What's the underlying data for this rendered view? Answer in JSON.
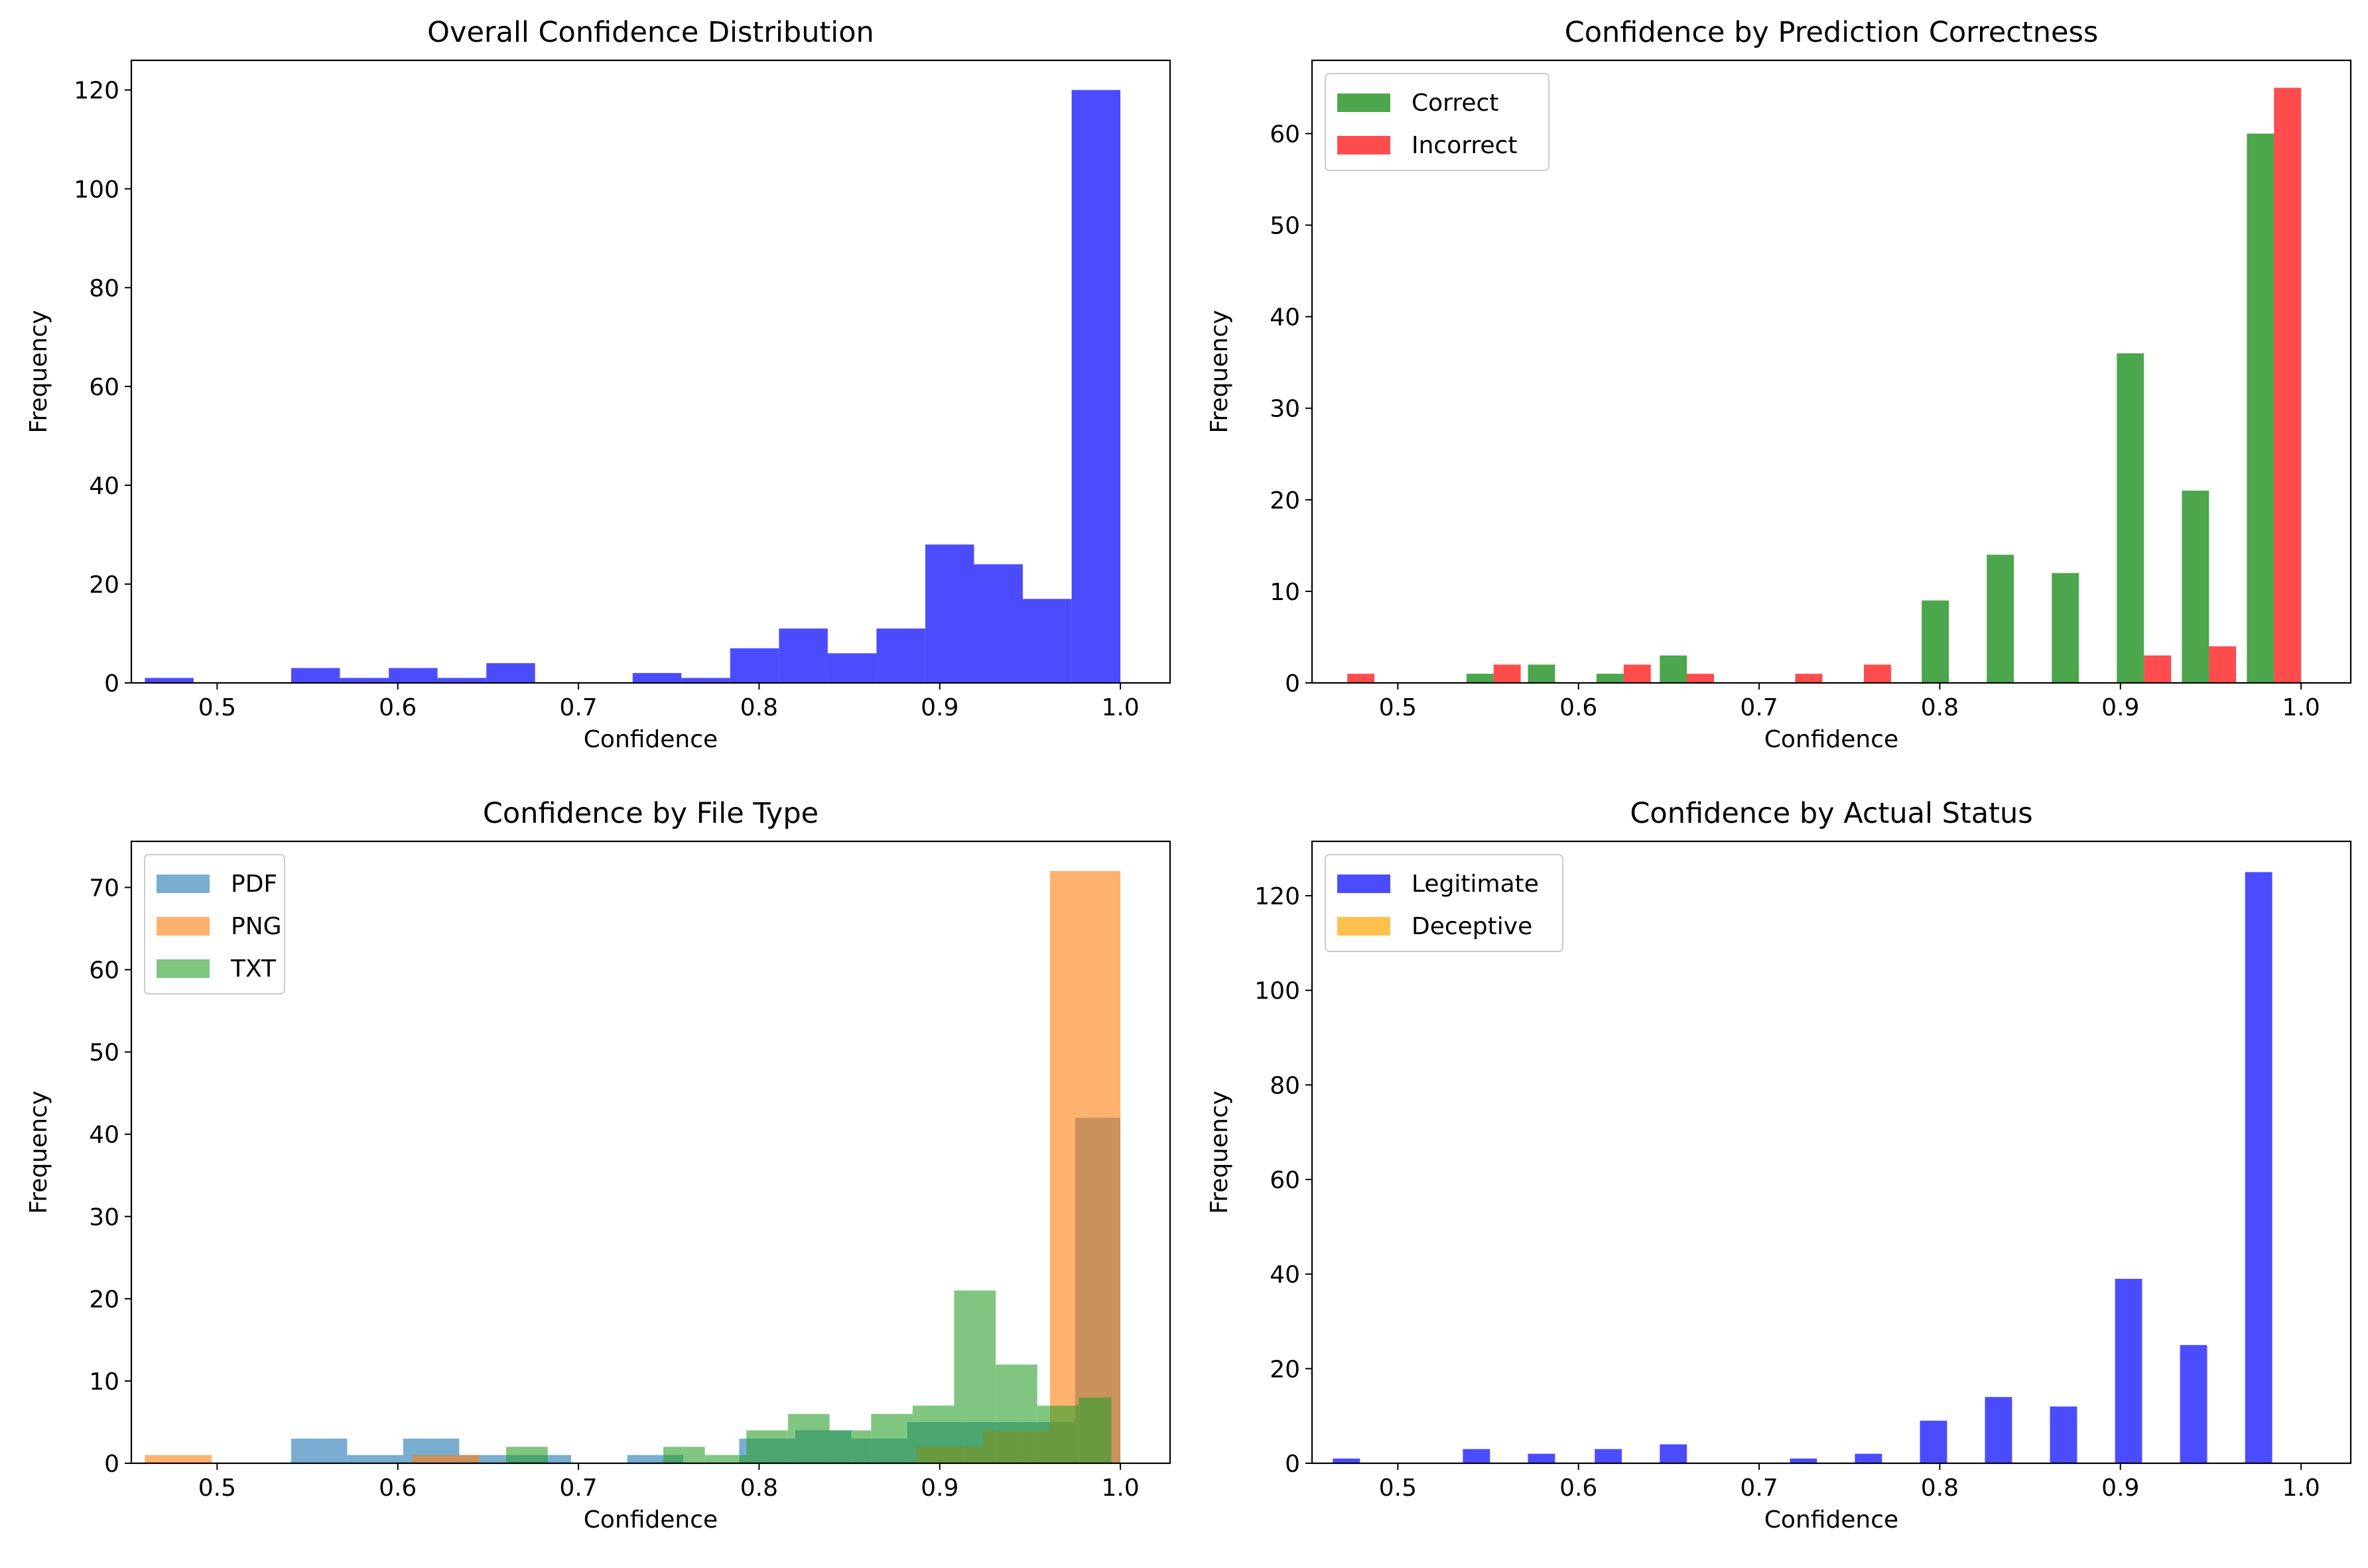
{
  "chart_data": [
    {
      "type": "bar",
      "title": "Overall Confidence Distribution",
      "xlabel": "Confidence",
      "ylabel": "Frequency",
      "xlim": [
        0.4525,
        1.0275
      ],
      "ylim": [
        0,
        126
      ],
      "xticks": [
        0.5,
        0.6,
        0.7,
        0.8,
        0.9,
        1.0
      ],
      "xtick_labels": [
        "0.5",
        "0.6",
        "0.7",
        "0.8",
        "0.9",
        "1.0"
      ],
      "yticks": [
        0,
        20,
        40,
        60,
        80,
        100,
        120
      ],
      "ytick_labels": [
        "0",
        "20",
        "40",
        "60",
        "80",
        "100",
        "120"
      ],
      "legend": null,
      "series": [
        {
          "color": "#0000ff",
          "opacity": 0.7,
          "bins": [
            [
              0.46,
              0.487,
              1
            ],
            [
              0.487,
              0.514,
              0
            ],
            [
              0.514,
              0.541,
              0
            ],
            [
              0.541,
              0.568,
              3
            ],
            [
              0.568,
              0.595,
              1
            ],
            [
              0.595,
              0.622,
              3
            ],
            [
              0.622,
              0.649,
              1
            ],
            [
              0.649,
              0.676,
              4
            ],
            [
              0.676,
              0.703,
              0
            ],
            [
              0.703,
              0.73,
              0
            ],
            [
              0.73,
              0.757,
              2
            ],
            [
              0.757,
              0.784,
              1
            ],
            [
              0.784,
              0.811,
              7
            ],
            [
              0.811,
              0.838,
              11
            ],
            [
              0.838,
              0.865,
              6
            ],
            [
              0.865,
              0.892,
              11
            ],
            [
              0.892,
              0.919,
              28
            ],
            [
              0.919,
              0.946,
              24
            ],
            [
              0.946,
              0.973,
              17
            ],
            [
              0.973,
              1.0,
              120
            ]
          ]
        }
      ]
    },
    {
      "type": "bar",
      "title": "Confidence by Prediction Correctness",
      "xlabel": "Confidence",
      "ylabel": "Frequency",
      "xlim": [
        0.4525,
        1.0275
      ],
      "ylim": [
        0,
        68
      ],
      "xticks": [
        0.5,
        0.6,
        0.7,
        0.8,
        0.9,
        1.0
      ],
      "xtick_labels": [
        "0.5",
        "0.6",
        "0.7",
        "0.8",
        "0.9",
        "1.0"
      ],
      "yticks": [
        0,
        10,
        20,
        30,
        40,
        50,
        60
      ],
      "ytick_labels": [
        "0",
        "10",
        "20",
        "30",
        "40",
        "50",
        "60"
      ],
      "legend": "top-left",
      "series": [
        {
          "name": "Correct",
          "color": "#008000",
          "opacity": 0.7,
          "bins": [
            [
              0.538,
              0.553,
              1
            ],
            [
              0.572,
              0.587,
              2
            ],
            [
              0.61,
              0.625,
              1
            ],
            [
              0.645,
              0.66,
              3
            ],
            [
              0.79,
              0.805,
              9
            ],
            [
              0.826,
              0.841,
              14
            ],
            [
              0.862,
              0.877,
              12
            ],
            [
              0.898,
              0.913,
              36
            ],
            [
              0.934,
              0.949,
              21
            ],
            [
              0.97,
              0.985,
              60
            ]
          ]
        },
        {
          "name": "Incorrect",
          "color": "#ff0000",
          "opacity": 0.7,
          "bins": [
            [
              0.472,
              0.487,
              1
            ],
            [
              0.553,
              0.568,
              2
            ],
            [
              0.625,
              0.64,
              2
            ],
            [
              0.66,
              0.675,
              1
            ],
            [
              0.72,
              0.735,
              1
            ],
            [
              0.758,
              0.773,
              2
            ],
            [
              0.913,
              0.928,
              3
            ],
            [
              0.949,
              0.964,
              4
            ],
            [
              0.985,
              1.0,
              65
            ]
          ]
        }
      ]
    },
    {
      "type": "bar",
      "title": "Confidence by File Type",
      "xlabel": "Confidence",
      "ylabel": "Frequency",
      "xlim": [
        0.4525,
        1.0275
      ],
      "ylim": [
        0,
        75.6
      ],
      "xticks": [
        0.5,
        0.6,
        0.7,
        0.8,
        0.9,
        1.0
      ],
      "xtick_labels": [
        "0.5",
        "0.6",
        "0.7",
        "0.8",
        "0.9",
        "1.0"
      ],
      "yticks": [
        0,
        10,
        20,
        30,
        40,
        50,
        60,
        70
      ],
      "ytick_labels": [
        "0",
        "10",
        "20",
        "30",
        "40",
        "50",
        "60",
        "70"
      ],
      "legend": "top-left",
      "series": [
        {
          "name": "PDF",
          "color": "#1f77b4",
          "opacity": 0.6,
          "bins": [
            [
              0.541,
              0.572,
              3
            ],
            [
              0.572,
              0.603,
              1
            ],
            [
              0.603,
              0.634,
              3
            ],
            [
              0.634,
              0.665,
              1
            ],
            [
              0.665,
              0.696,
              1
            ],
            [
              0.727,
              0.758,
              1
            ],
            [
              0.789,
              0.82,
              3
            ],
            [
              0.82,
              0.851,
              4
            ],
            [
              0.851,
              0.882,
              3
            ],
            [
              0.882,
              0.913,
              5
            ],
            [
              0.913,
              0.944,
              5
            ],
            [
              0.944,
              0.975,
              5
            ],
            [
              0.975,
              1.0,
              42
            ]
          ]
        },
        {
          "name": "PNG",
          "color": "#ff7f0e",
          "opacity": 0.6,
          "bins": [
            [
              0.46,
              0.497,
              1
            ],
            [
              0.608,
              0.645,
              1
            ],
            [
              0.887,
              0.924,
              2
            ],
            [
              0.924,
              0.961,
              4
            ],
            [
              0.961,
              1.0,
              72
            ]
          ]
        },
        {
          "name": "TXT",
          "color": "#2ca02c",
          "opacity": 0.6,
          "bins": [
            [
              0.66,
              0.683,
              2
            ],
            [
              0.747,
              0.77,
              2
            ],
            [
              0.77,
              0.793,
              1
            ],
            [
              0.793,
              0.816,
              4
            ],
            [
              0.816,
              0.839,
              6
            ],
            [
              0.839,
              0.862,
              4
            ],
            [
              0.862,
              0.885,
              6
            ],
            [
              0.885,
              0.908,
              7
            ],
            [
              0.908,
              0.931,
              21
            ],
            [
              0.931,
              0.954,
              12
            ],
            [
              0.954,
              0.977,
              7
            ],
            [
              0.977,
              0.995,
              8
            ]
          ]
        }
      ]
    },
    {
      "type": "bar",
      "title": "Confidence by Actual Status",
      "xlabel": "Confidence",
      "ylabel": "Frequency",
      "xlim": [
        0.4525,
        1.0275
      ],
      "ylim": [
        0,
        131.5
      ],
      "xticks": [
        0.5,
        0.6,
        0.7,
        0.8,
        0.9,
        1.0
      ],
      "xtick_labels": [
        "0.5",
        "0.6",
        "0.7",
        "0.8",
        "0.9",
        "1.0"
      ],
      "yticks": [
        0,
        20,
        40,
        60,
        80,
        100,
        120
      ],
      "ytick_labels": [
        "0",
        "20",
        "40",
        "60",
        "80",
        "100",
        "120"
      ],
      "legend": "top-left",
      "series": [
        {
          "name": "Legitimate",
          "color": "#0000ff",
          "opacity": 0.7,
          "bins": [
            [
              0.464,
              0.479,
              1
            ],
            [
              0.536,
              0.551,
              3
            ],
            [
              0.572,
              0.587,
              2
            ],
            [
              0.609,
              0.624,
              3
            ],
            [
              0.645,
              0.66,
              4
            ],
            [
              0.717,
              0.732,
              1
            ],
            [
              0.753,
              0.768,
              2
            ],
            [
              0.789,
              0.804,
              9
            ],
            [
              0.825,
              0.84,
              14
            ],
            [
              0.861,
              0.876,
              12
            ],
            [
              0.897,
              0.912,
              39
            ],
            [
              0.933,
              0.948,
              25
            ],
            [
              0.969,
              0.984,
              125
            ]
          ]
        },
        {
          "name": "Deceptive",
          "color": "#ffa500",
          "opacity": 0.7,
          "bins": []
        }
      ]
    }
  ]
}
